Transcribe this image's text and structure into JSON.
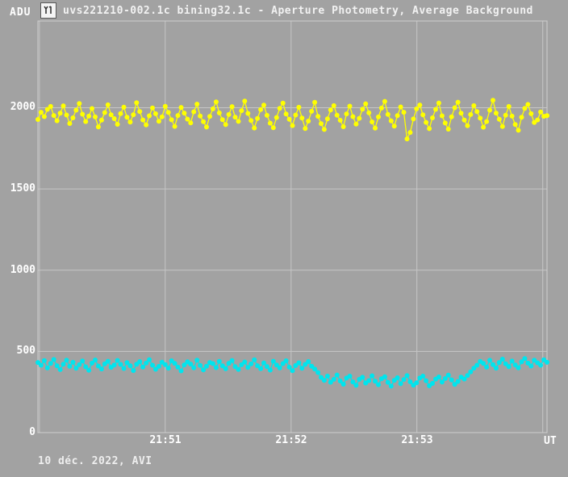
{
  "window": {
    "title": "uvs221210-002.1c bining32.1c - Aperture Photometry, Average Background",
    "icon": "lightcurve-chart-icon"
  },
  "footer": {
    "text": "10 déc. 2022, AVI"
  },
  "colors": {
    "window_background": "#a2a2a2",
    "grid": "#c6c6c6",
    "border": "#cfcfcf",
    "text": "#ffffff",
    "series_yellow": "#ffff00",
    "series_cyan": "#00e5ee"
  },
  "chart_data": {
    "type": "scatter",
    "title": "uvs221210-002.1c bining32.1c - Aperture Photometry, Average Background",
    "xlabel": "UT",
    "ylabel": "ADU",
    "x_ticks": [
      {
        "minutes": 1,
        "label": "21:51"
      },
      {
        "minutes": 2,
        "label": "21:52"
      },
      {
        "minutes": 3,
        "label": "21:53"
      }
    ],
    "x_gridline_minutes": [
      0,
      1,
      2,
      3,
      4
    ],
    "x_domain_minutes": [
      -0.012,
      4.034
    ],
    "x_domain_note": "minutes after 21:50 UT; series points sampled evenly across domain",
    "y_ticks": [
      0,
      500,
      1000,
      1500,
      2000
    ],
    "ylim": [
      0,
      2534
    ],
    "grid": true,
    "legend": "none",
    "series": [
      {
        "name": "upper-background-yellow",
        "color": "#ffff00",
        "mean_adu": 1950,
        "values": [
          1928,
          1972,
          1945,
          1990,
          2008,
          1952,
          1920,
          1966,
          2012,
          1955,
          1903,
          1938,
          1985,
          2026,
          1960,
          1915,
          1948,
          1995,
          1943,
          1882,
          1924,
          1970,
          2018,
          1956,
          1933,
          1898,
          1964,
          2004,
          1941,
          1912,
          1957,
          2031,
          1977,
          1925,
          1894,
          1950,
          1999,
          1963,
          1917,
          1944,
          2009,
          1971,
          1926,
          1885,
          1952,
          2002,
          1967,
          1930,
          1907,
          1975,
          2022,
          1949,
          1914,
          1881,
          1946,
          1993,
          2036,
          1968,
          1927,
          1896,
          1958,
          2007,
          1942,
          1916,
          1982,
          2041,
          1965,
          1921,
          1875,
          1934,
          1989,
          2016,
          1953,
          1905,
          1877,
          1940,
          1996,
          2028,
          1961,
          1929,
          1890,
          1955,
          2003,
          1937,
          1872,
          1918,
          1978,
          2033,
          1947,
          1902,
          1866,
          1932,
          1986,
          2013,
          1954,
          1923,
          1883,
          1962,
          2010,
          1945,
          1899,
          1935,
          1991,
          2024,
          1969,
          1913,
          1874,
          1943,
          1998,
          2039,
          1959,
          1919,
          1887,
          1951,
          2005,
          1972,
          1808,
          1848,
          1931,
          1993,
          2017,
          1956,
          1910,
          1871,
          1938,
          1990,
          2029,
          1950,
          1906,
          1868,
          1944,
          2000,
          2034,
          1966,
          1924,
          1889,
          1958,
          2013,
          1976,
          1936,
          1880,
          1915,
          1985,
          2046,
          1967,
          1929,
          1884,
          1954,
          2008,
          1948,
          1897,
          1861,
          1941,
          1996,
          2020,
          1963,
          1909,
          1925,
          1974,
          1947,
          1951
        ]
      },
      {
        "name": "lower-background-cyan",
        "color": "#00e5ee",
        "mean_adu": 410,
        "values": [
          432,
          415,
          443,
          398,
          426,
          450,
          411,
          388,
          421,
          446,
          408,
          433,
          396,
          418,
          441,
          405,
          384,
          428,
          447,
          410,
          392,
          423,
          439,
          402,
          416,
          444,
          420,
          395,
          431,
          412,
          382,
          421,
          437,
          404,
          428,
          449,
          415,
          390,
          408,
          434,
          419,
          397,
          442,
          426,
          403,
          380,
          417,
          436,
          422,
          399,
          446,
          414,
          386,
          409,
          432,
          425,
          400,
          438,
          411,
          393,
          427,
          443,
          406,
          389,
          418,
          435,
          401,
          423,
          448,
          412,
          394,
          429,
          407,
          385,
          439,
          416,
          398,
          425,
          442,
          403,
          381,
          413,
          430,
          396,
          420,
          437,
          409,
          391,
          370,
          340,
          322,
          348,
          310,
          328,
          355,
          318,
          298,
          336,
          348,
          312,
          291,
          328,
          341,
          305,
          320,
          350,
          316,
          295,
          332,
          344,
          309,
          286,
          322,
          338,
          301,
          327,
          351,
          313,
          292,
          307,
          336,
          348,
          319,
          288,
          303,
          329,
          343,
          311,
          333,
          354,
          324,
          297,
          315,
          342,
          330,
          352,
          374,
          396,
          415,
          438,
          426,
          403,
          445,
          419,
          397,
          432,
          452,
          424,
          406,
          440,
          417,
          399,
          436,
          456,
          428,
          410,
          446,
          430,
          415,
          448,
          433
        ]
      }
    ]
  }
}
